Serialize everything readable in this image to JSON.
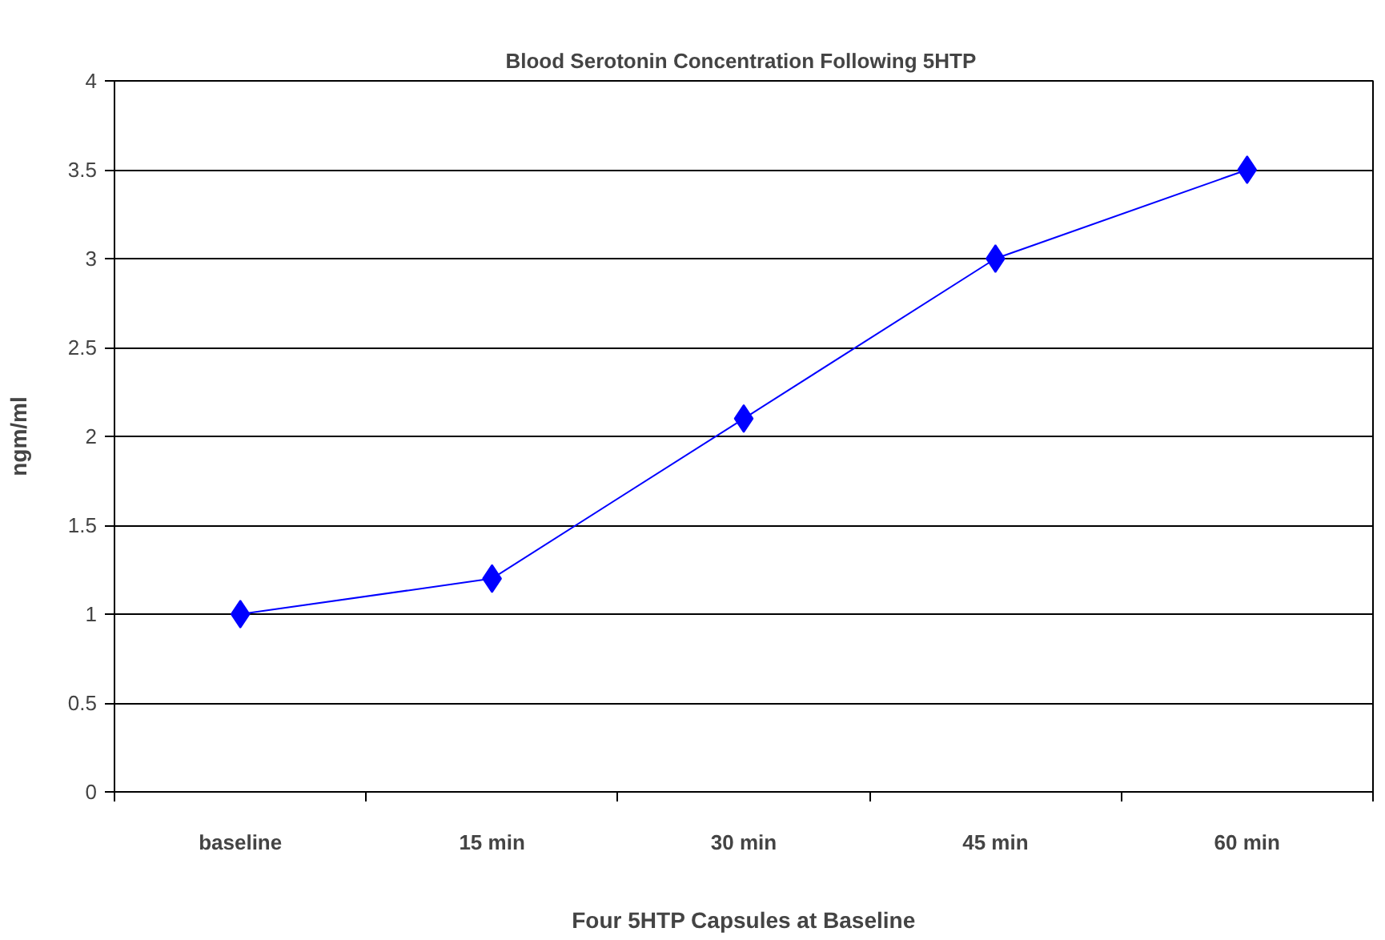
{
  "chart_data": {
    "type": "line",
    "title": "Blood Serotonin Concentration  Following 5HTP",
    "xlabel": "Four 5HTP Capsules at Baseline",
    "ylabel": "ngm/ml",
    "categories": [
      "baseline",
      "15 min",
      "30 min",
      "45 min",
      "60 min"
    ],
    "series": [
      {
        "color": "#0000ff",
        "values": [
          1,
          1.2,
          2.1,
          3,
          3.5
        ]
      }
    ],
    "ylim": [
      0,
      4
    ],
    "yticks": [
      0,
      0.5,
      1,
      1.5,
      2,
      2.5,
      3,
      3.5,
      4
    ],
    "grid": "y",
    "marker": "diamond",
    "line_style": "solid"
  }
}
